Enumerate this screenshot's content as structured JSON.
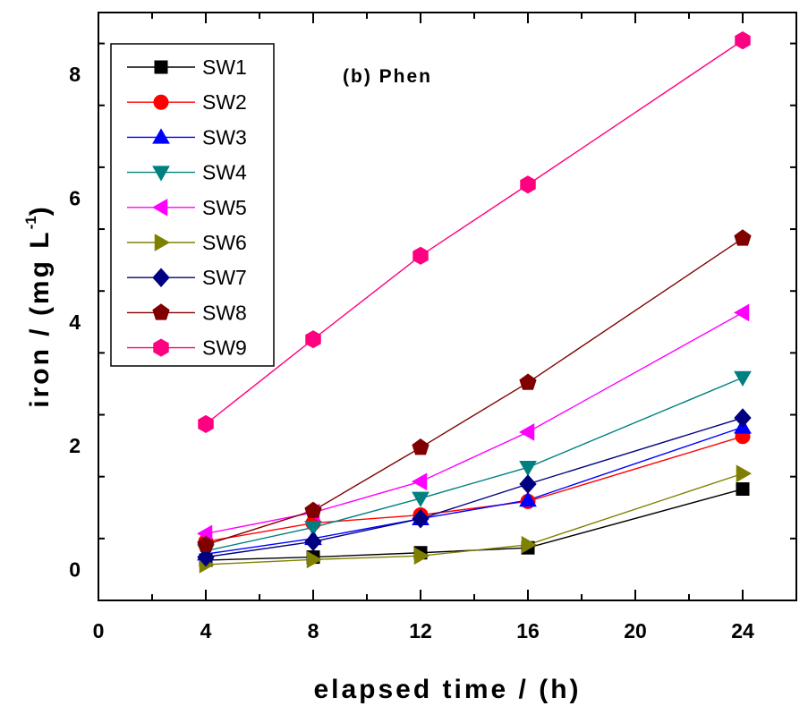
{
  "chart_data": {
    "type": "line",
    "annotation": "(b) Phen",
    "xlabel": "elapsed time / (h)",
    "ylabel_main": "iron / (mg L",
    "ylabel_sup": "-1",
    "ylabel_close": ")",
    "xlim": [
      0,
      26
    ],
    "ylim": [
      -0.5,
      9.0
    ],
    "xticks": [
      0,
      4,
      8,
      12,
      16,
      20,
      24
    ],
    "yticks": [
      0,
      2,
      4,
      6,
      8
    ],
    "x": [
      4,
      8,
      12,
      16,
      24
    ],
    "legend_position": "top-left",
    "grid": false,
    "series": [
      {
        "name": "SW1",
        "color": "#000000",
        "marker": "square",
        "values": [
          0.15,
          0.2,
          0.27,
          0.35,
          1.3
        ]
      },
      {
        "name": "SW2",
        "color": "#ff0000",
        "marker": "circle",
        "values": [
          0.45,
          0.75,
          0.88,
          1.1,
          2.15
        ]
      },
      {
        "name": "SW3",
        "color": "#0000ff",
        "marker": "triangle-up",
        "values": [
          0.25,
          0.5,
          0.82,
          1.12,
          2.3
        ]
      },
      {
        "name": "SW4",
        "color": "#008080",
        "marker": "triangle-down",
        "values": [
          0.3,
          0.68,
          1.15,
          1.65,
          3.1
        ]
      },
      {
        "name": "SW5",
        "color": "#ff00ff",
        "marker": "triangle-left",
        "values": [
          0.58,
          0.92,
          1.42,
          2.22,
          4.15
        ]
      },
      {
        "name": "SW6",
        "color": "#808000",
        "marker": "triangle-right",
        "values": [
          0.08,
          0.16,
          0.22,
          0.4,
          1.55
        ]
      },
      {
        "name": "SW7",
        "color": "#000080",
        "marker": "diamond",
        "values": [
          0.2,
          0.45,
          0.82,
          1.38,
          2.45
        ]
      },
      {
        "name": "SW8",
        "color": "#800000",
        "marker": "pentagon",
        "values": [
          0.4,
          0.95,
          1.97,
          3.02,
          5.35
        ]
      },
      {
        "name": "SW9",
        "color": "#ff0080",
        "marker": "hexagon",
        "values": [
          2.35,
          3.72,
          5.07,
          6.22,
          8.55
        ]
      }
    ]
  }
}
